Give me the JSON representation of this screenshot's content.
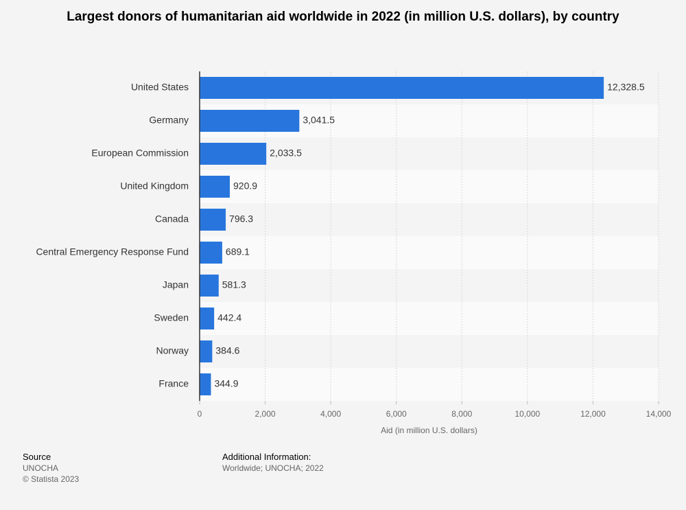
{
  "chart_data": {
    "type": "bar",
    "orientation": "horizontal",
    "title": "Largest donors of humanitarian aid worldwide in 2022 (in million U.S. dollars), by country",
    "categories": [
      "United States",
      "Germany",
      "European Commission",
      "United Kingdom",
      "Canada",
      "Central Emergency Response Fund",
      "Japan",
      "Sweden",
      "Norway",
      "France"
    ],
    "values": [
      12328.5,
      3041.5,
      2033.5,
      920.9,
      796.3,
      689.1,
      581.3,
      442.4,
      384.6,
      344.9
    ],
    "value_labels": [
      "12,328.5",
      "3,041.5",
      "2,033.5",
      "920.9",
      "796.3",
      "689.1",
      "581.3",
      "442.4",
      "384.6",
      "344.9"
    ],
    "color": "#2876dd",
    "xlabel": "Aid (in million U.S. dollars)",
    "xlim": [
      0,
      14000
    ],
    "xticks": [
      0,
      {
        "value": 2000,
        "label": "2,000"
      },
      {
        "value": 4000,
        "label": "4,000"
      },
      {
        "value": 6000,
        "label": "6,000"
      },
      {
        "value": 8000,
        "label": "8,000"
      },
      {
        "value": 10000,
        "label": "10,000"
      },
      {
        "value": 12000,
        "label": "12,000"
      },
      {
        "value": 14000,
        "label": "14,000"
      }
    ],
    "grid": true
  },
  "footer": {
    "source_label": "Source",
    "source": "UNOCHA",
    "copyright": "© Statista 2023",
    "additional_label": "Additional Information:",
    "additional": "Worldwide; UNOCHA; 2022"
  }
}
